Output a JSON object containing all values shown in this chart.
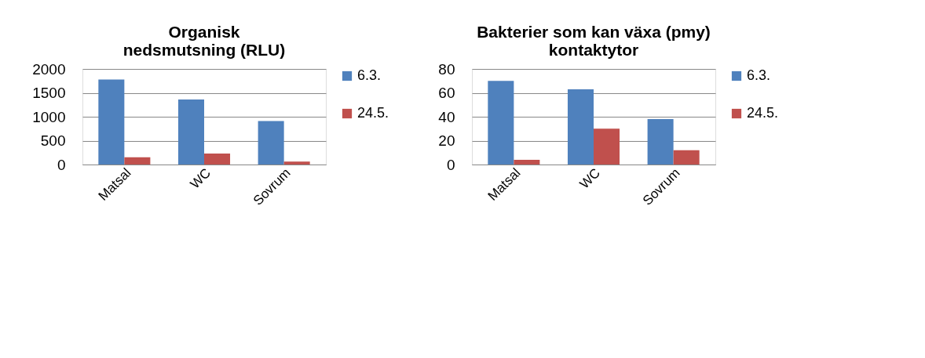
{
  "chart_data": [
    {
      "type": "bar",
      "title": [
        "Organisk",
        "nedsmutsning (RLU)"
      ],
      "categories": [
        "Matsal",
        "WC",
        "Sovrum"
      ],
      "series": [
        {
          "name": "6.3.",
          "color": "#4f81bd",
          "values": [
            1780,
            1360,
            910
          ]
        },
        {
          "name": "24.5.",
          "color": "#c0504d",
          "values": [
            150,
            230,
            60
          ]
        }
      ],
      "ylim": [
        0,
        2000
      ],
      "yticks": [
        0,
        500,
        1000,
        1500,
        2000
      ],
      "grid": "y",
      "legend": "right"
    },
    {
      "type": "bar",
      "title": [
        "Bakterier som kan växa (pmy)",
        "kontaktytor"
      ],
      "categories": [
        "Matsal",
        "WC",
        "Sovrum"
      ],
      "series": [
        {
          "name": "6.3.",
          "color": "#4f81bd",
          "values": [
            70,
            63,
            38
          ]
        },
        {
          "name": "24.5.",
          "color": "#c0504d",
          "values": [
            4,
            30,
            12
          ]
        }
      ],
      "ylim": [
        0,
        80
      ],
      "yticks": [
        0,
        20,
        40,
        60,
        80
      ],
      "grid": "y",
      "legend": "right"
    }
  ]
}
